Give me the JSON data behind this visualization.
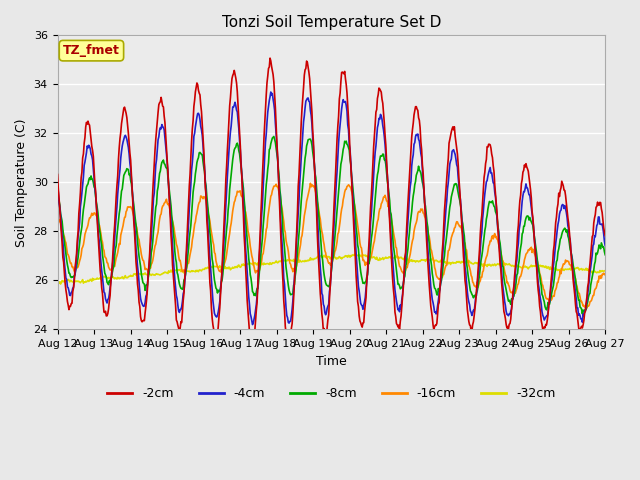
{
  "title": "Tonzi Soil Temperature Set D",
  "xlabel": "Time",
  "ylabel": "Soil Temperature (C)",
  "ylim": [
    24,
    36
  ],
  "yticks": [
    24,
    26,
    28,
    30,
    32,
    34,
    36
  ],
  "n_days": 15,
  "x_tick_labels": [
    "Aug 12",
    "Aug 13",
    "Aug 14",
    "Aug 15",
    "Aug 16",
    "Aug 17",
    "Aug 18",
    "Aug 19",
    "Aug 20",
    "Aug 21",
    "Aug 22",
    "Aug 23",
    "Aug 24",
    "Aug 25",
    "Aug 26",
    "Aug 27"
  ],
  "series_colors": {
    "-2cm": "#cc0000",
    "-4cm": "#2222cc",
    "-8cm": "#00aa00",
    "-16cm": "#ff8800",
    "-32cm": "#dddd00"
  },
  "series_linewidths": {
    "-2cm": 1.2,
    "-4cm": 1.2,
    "-8cm": 1.2,
    "-16cm": 1.2,
    "-32cm": 1.2
  },
  "annotation_text": "TZ_fmet",
  "annotation_color": "#aa0000",
  "annotation_bg": "#ffff99",
  "annotation_edge": "#aaaa00",
  "fig_bg": "#e8e8e8",
  "plot_bg": "#ebebeb",
  "grid_color": "#ffffff",
  "title_fontsize": 11,
  "axis_label_fontsize": 9,
  "tick_fontsize": 8,
  "legend_fontsize": 9,
  "figsize": [
    6.4,
    4.8
  ],
  "dpi": 100
}
